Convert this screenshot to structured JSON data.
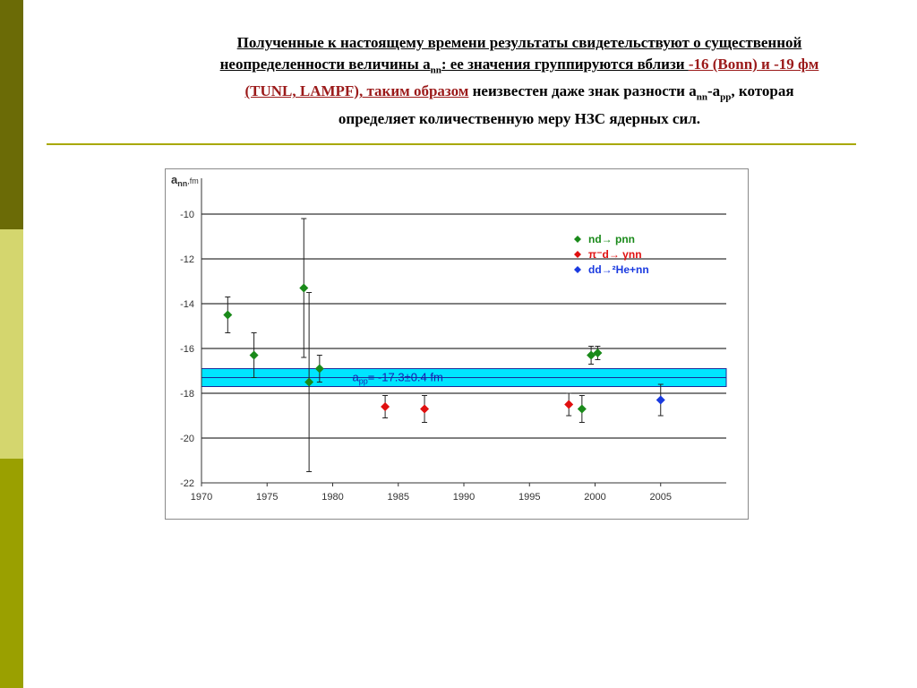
{
  "slide": {
    "title_line1": "Полученные к настоящему времени результаты свидетельствуют о существенной",
    "title_line2_a": "неопределенности величины a",
    "title_line2_sub": "nn",
    "title_line2_b": ": ее значения группируются вблизи ",
    "title_line2_c": "-16 (Bonn) и -19 фм",
    "title_line3_a": "(TUNL, LAMPF), таким образом",
    "title_line3_b": " неизвестен даже знак разности a",
    "title_line3_sub1": "nn",
    "title_line3_c": "-a",
    "title_line3_sub2": "pp",
    "title_line3_d": ", которая",
    "title_line4": "определяет количественную меру НЗС ядерных сил.",
    "colors": {
      "sidebar_top": "#6b6b06",
      "sidebar_mid": "#d4d66e",
      "sidebar_bottom": "#9aa000",
      "rule": "#a8a800",
      "emphasis": "#9b1a1a"
    }
  },
  "chart_data": {
    "type": "scatter",
    "ylabel_main": "a",
    "ylabel_sub": "nn",
    "ylabel_unit": ",fm",
    "xlim": [
      1970,
      2010
    ],
    "ylim": [
      -22,
      -8.4
    ],
    "xticks": [
      1970,
      1975,
      1980,
      1985,
      1990,
      1995,
      2000,
      2005
    ],
    "yticks": [
      -10,
      -12,
      -14,
      -16,
      -18,
      -20,
      -22
    ],
    "grid": "horizontal",
    "band": {
      "y_from": -17.7,
      "y_to": -16.9,
      "center": -17.3,
      "color": "#00e5ff",
      "label_main": "a",
      "label_sub": "pp",
      "label_rest": "= -17.3±0.4 fm"
    },
    "legend": {
      "placement": "top-right",
      "entries": [
        {
          "html": "nd→ pnn",
          "color": "#1a8a1a",
          "text_color": "#1a8a1a"
        },
        {
          "html": "π⁻d→ γnn",
          "color": "#e01010",
          "text_color": "#e01010"
        },
        {
          "html": "dd→²He+nn",
          "color": "#1a3ae0",
          "text_color": "#1a3ae0"
        }
      ]
    },
    "series": [
      {
        "name": "nd→ pnn",
        "color": "#1a8a1a",
        "points": [
          {
            "x": 1972,
            "y": -14.5,
            "err": 0.8
          },
          {
            "x": 1974,
            "y": -16.3,
            "err": 1.0
          },
          {
            "x": 1977.8,
            "y": -13.3,
            "err": 3.1
          },
          {
            "x": 1978.2,
            "y": -17.5,
            "err": 4.0
          },
          {
            "x": 1979,
            "y": -16.9,
            "err": 0.6
          },
          {
            "x": 1999,
            "y": -18.7,
            "err": 0.6
          },
          {
            "x": 1999.7,
            "y": -16.3,
            "err": 0.4
          },
          {
            "x": 2000.2,
            "y": -16.2,
            "err": 0.3
          }
        ]
      },
      {
        "name": "π⁻d→ γnn",
        "color": "#e01010",
        "points": [
          {
            "x": 1984,
            "y": -18.6,
            "err": 0.5
          },
          {
            "x": 1987,
            "y": -18.7,
            "err": 0.6
          },
          {
            "x": 1998,
            "y": -18.5,
            "err": 0.5
          }
        ]
      },
      {
        "name": "dd→²He+nn",
        "color": "#1a3ae0",
        "points": [
          {
            "x": 2005,
            "y": -18.3,
            "err": 0.7
          }
        ]
      }
    ]
  }
}
